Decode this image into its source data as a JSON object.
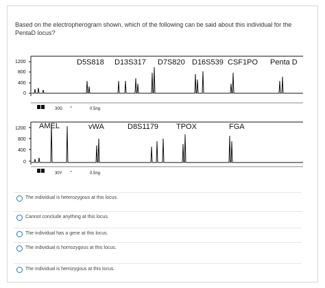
{
  "question": {
    "text": "Based on the electropherogram shown, which of the following can be said about this individual for the PentaD locus?"
  },
  "figure": {
    "panel1": {
      "ticks": [
        "1200",
        "800",
        "400",
        "0"
      ],
      "loci": [
        "D5S818",
        "D13S317",
        "D7S820",
        "D16S539",
        "CSF1PO",
        "Penta D"
      ],
      "sample_label": "30G",
      "amount_label": "0.5ng"
    },
    "panel2": {
      "ticks": [
        "1200",
        "800",
        "400",
        "0"
      ],
      "loci": [
        "AMEL",
        "vWA",
        "D8S1179",
        "TPOX",
        "FGA"
      ],
      "sample_label": "30Y",
      "amount_label": "0.5ng"
    }
  },
  "options": [
    {
      "label": "The individual is heterozygous at this locus."
    },
    {
      "label": "Cannot conclude anything at this locus."
    },
    {
      "label": "The individual has a gene at this locus."
    },
    {
      "label": "The individual is homozygous at this locus."
    },
    {
      "label": "The individual is hemizygous at this locus."
    }
  ],
  "colors": {
    "trace": "#111111",
    "radio": "#1a73c9",
    "divider": "#e6e6e6"
  }
}
